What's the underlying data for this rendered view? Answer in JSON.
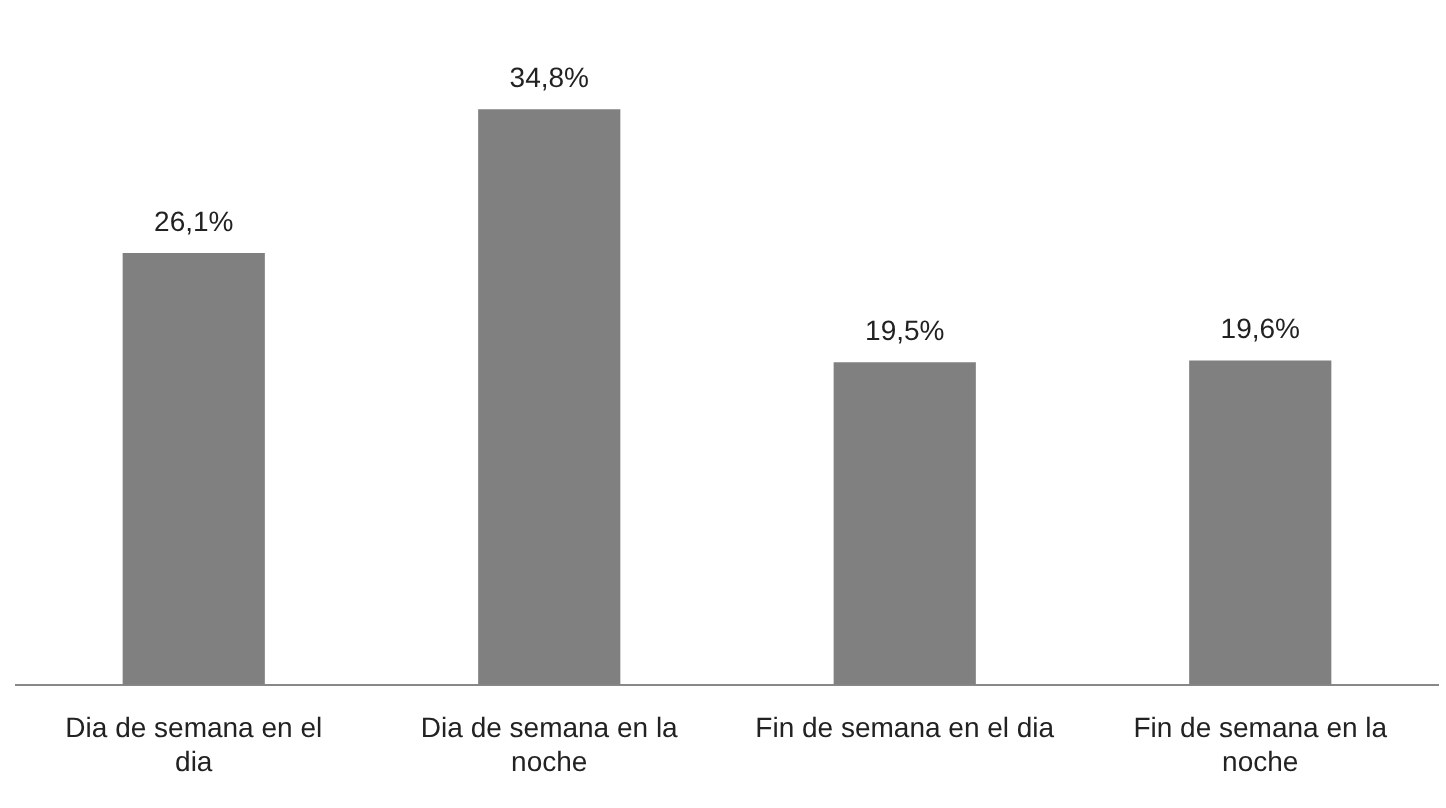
{
  "chart_data": {
    "type": "bar",
    "categories": [
      "Dia de semana en el dia",
      "Dia de semana en la noche",
      "Fin de semana en el dia",
      "Fin de semana en la noche"
    ],
    "values": [
      26.1,
      34.8,
      19.5,
      19.6
    ],
    "color": "#808080",
    "value_labels": [
      "26,1%",
      "34,8%",
      "19,5%",
      "19,6%"
    ],
    "grid": false,
    "legend": false
  }
}
